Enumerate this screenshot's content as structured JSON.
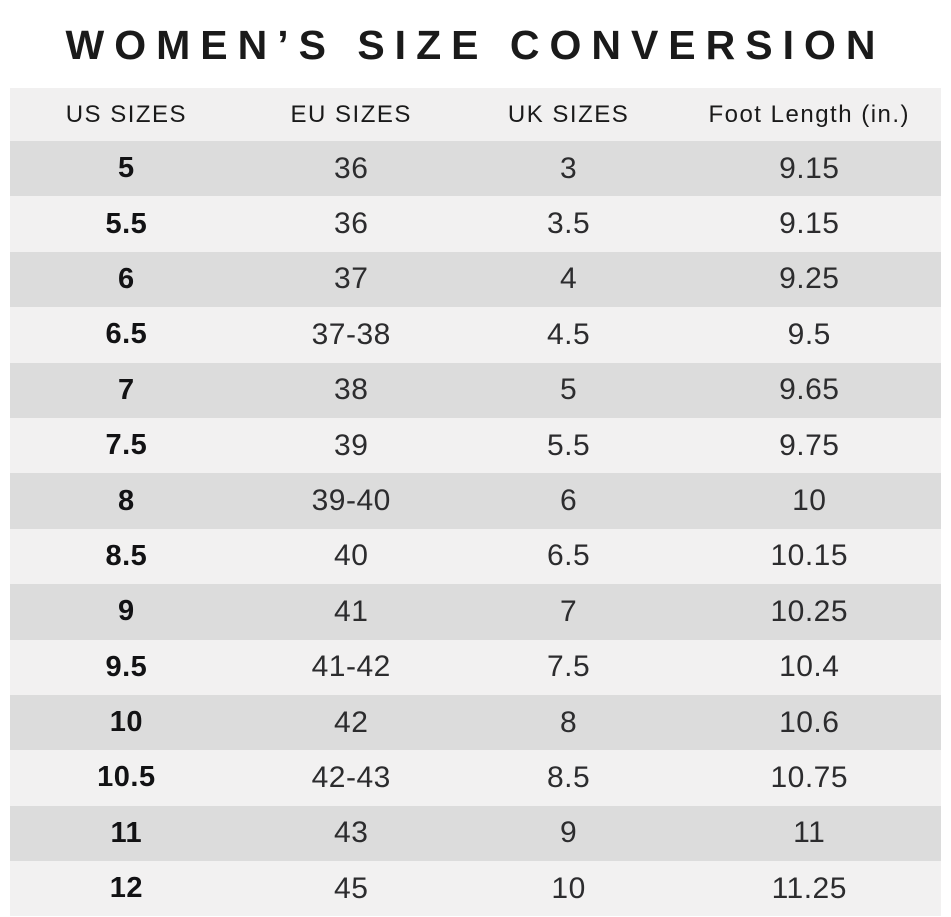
{
  "chart_data": {
    "type": "table",
    "title": "WOMEN’S SIZE CONVERSION",
    "columns": [
      "US SIZES",
      "EU SIZES",
      "UK SIZES",
      "Foot Length (in.)"
    ],
    "rows": [
      {
        "us": "5",
        "eu": "36",
        "uk": "3",
        "ft": "9.15"
      },
      {
        "us": "5.5",
        "eu": "36",
        "uk": "3.5",
        "ft": "9.15"
      },
      {
        "us": "6",
        "eu": "37",
        "uk": "4",
        "ft": "9.25"
      },
      {
        "us": "6.5",
        "eu": "37-38",
        "uk": "4.5",
        "ft": "9.5"
      },
      {
        "us": "7",
        "eu": "38",
        "uk": "5",
        "ft": "9.65"
      },
      {
        "us": "7.5",
        "eu": "39",
        "uk": "5.5",
        "ft": "9.75"
      },
      {
        "us": "8",
        "eu": "39-40",
        "uk": "6",
        "ft": "10"
      },
      {
        "us": "8.5",
        "eu": "40",
        "uk": "6.5",
        "ft": "10.15"
      },
      {
        "us": "9",
        "eu": "41",
        "uk": "7",
        "ft": "10.25"
      },
      {
        "us": "9.5",
        "eu": "41-42",
        "uk": "7.5",
        "ft": "10.4"
      },
      {
        "us": "10",
        "eu": "42",
        "uk": "8",
        "ft": "10.6"
      },
      {
        "us": "10.5",
        "eu": "42-43",
        "uk": "8.5",
        "ft": "10.75"
      },
      {
        "us": "11",
        "eu": "43",
        "uk": "9",
        "ft": "11"
      },
      {
        "us": "12",
        "eu": "45",
        "uk": "10",
        "ft": "11.25"
      }
    ],
    "layout_hints": {
      "row_striping": "odd rows shaded gray, even rows light",
      "us_column_bold": true
    }
  },
  "colors": {
    "page_bg": "#ffffff",
    "header_bg": "#f1f0f0",
    "row_light_bg": "#f2f1f1",
    "row_shaded_bg": "#dcdcdc",
    "text": "#1a1a1a"
  }
}
